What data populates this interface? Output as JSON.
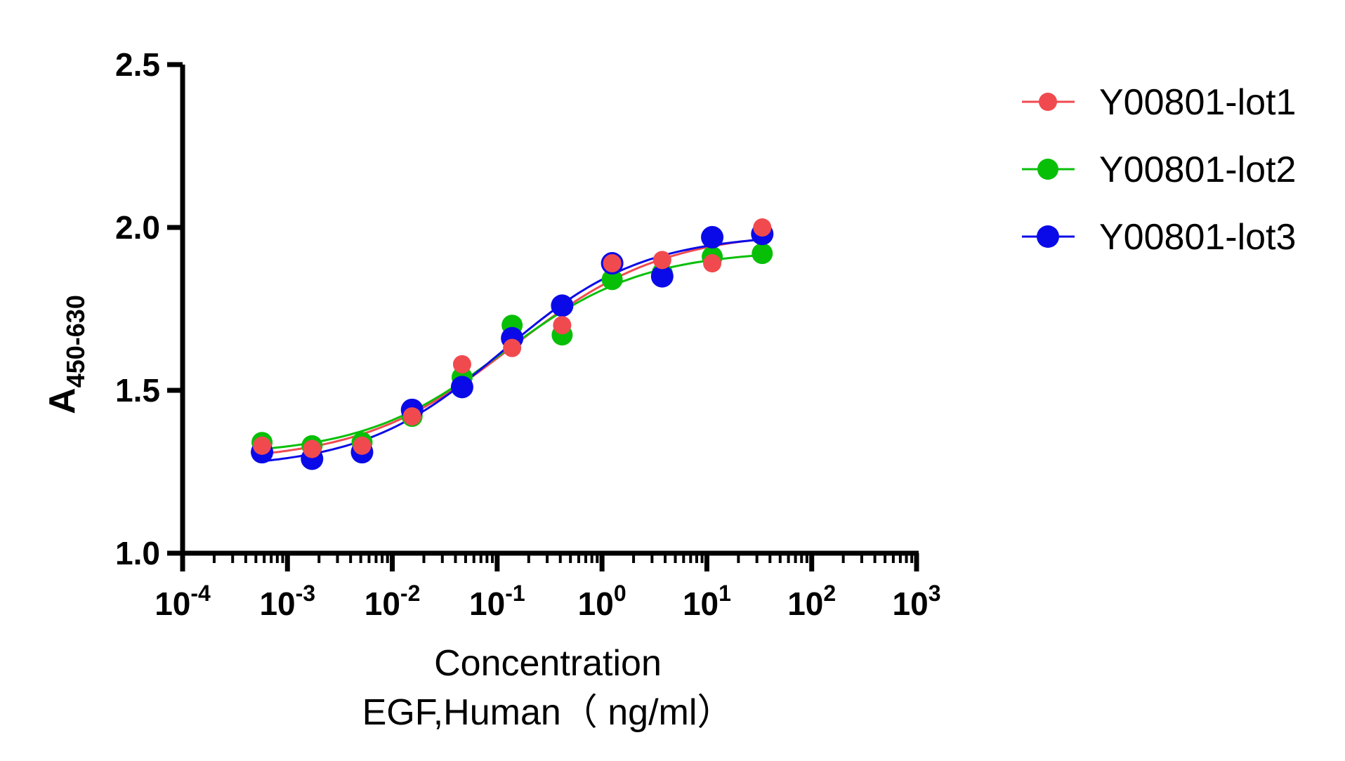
{
  "chart_data": {
    "type": "scatter",
    "x_scale": "log",
    "xlim": [
      0.0001,
      1000
    ],
    "ylim": [
      1.0,
      2.5
    ],
    "x_ticks": [
      0.0001,
      0.001,
      0.01,
      0.1,
      1,
      10,
      100,
      1000
    ],
    "x_tick_labels": [
      {
        "base": "10",
        "exp": "-4"
      },
      {
        "base": "10",
        "exp": "-3"
      },
      {
        "base": "10",
        "exp": "-2"
      },
      {
        "base": "10",
        "exp": "-1"
      },
      {
        "base": "10",
        "exp": "0"
      },
      {
        "base": "10",
        "exp": "1"
      },
      {
        "base": "10",
        "exp": "2"
      },
      {
        "base": "10",
        "exp": "3"
      }
    ],
    "y_ticks": [
      1.0,
      1.5,
      2.0,
      2.5
    ],
    "y_tick_labels": [
      "1.0",
      "1.5",
      "2.0",
      "2.5"
    ],
    "xlabel": [
      "Concentration",
      "EGF,Human（ ng/ml）"
    ],
    "ylabel": {
      "main": "A",
      "subscript": "450-630"
    },
    "grid": false,
    "legend": "top-right",
    "x": [
      0.000572,
      0.001715,
      0.005144,
      0.01543,
      0.0463,
      0.1389,
      0.4167,
      1.25,
      3.75,
      11.25,
      33.75
    ],
    "series": [
      {
        "name": "Y00801-lot1",
        "color": "#f04a4f",
        "values": [
          1.33,
          1.32,
          1.33,
          1.42,
          1.58,
          1.63,
          1.7,
          1.89,
          1.9,
          1.89,
          2.0
        ]
      },
      {
        "name": "Y00801-lot2",
        "color": "#08bf08",
        "values": [
          1.34,
          1.33,
          1.34,
          1.42,
          1.54,
          1.7,
          1.67,
          1.84,
          1.86,
          1.91,
          1.92
        ]
      },
      {
        "name": "Y00801-lot3",
        "color": "#0a0ae8",
        "values": [
          1.31,
          1.29,
          1.31,
          1.44,
          1.51,
          1.66,
          1.76,
          1.89,
          1.85,
          1.97,
          1.98
        ]
      }
    ]
  }
}
